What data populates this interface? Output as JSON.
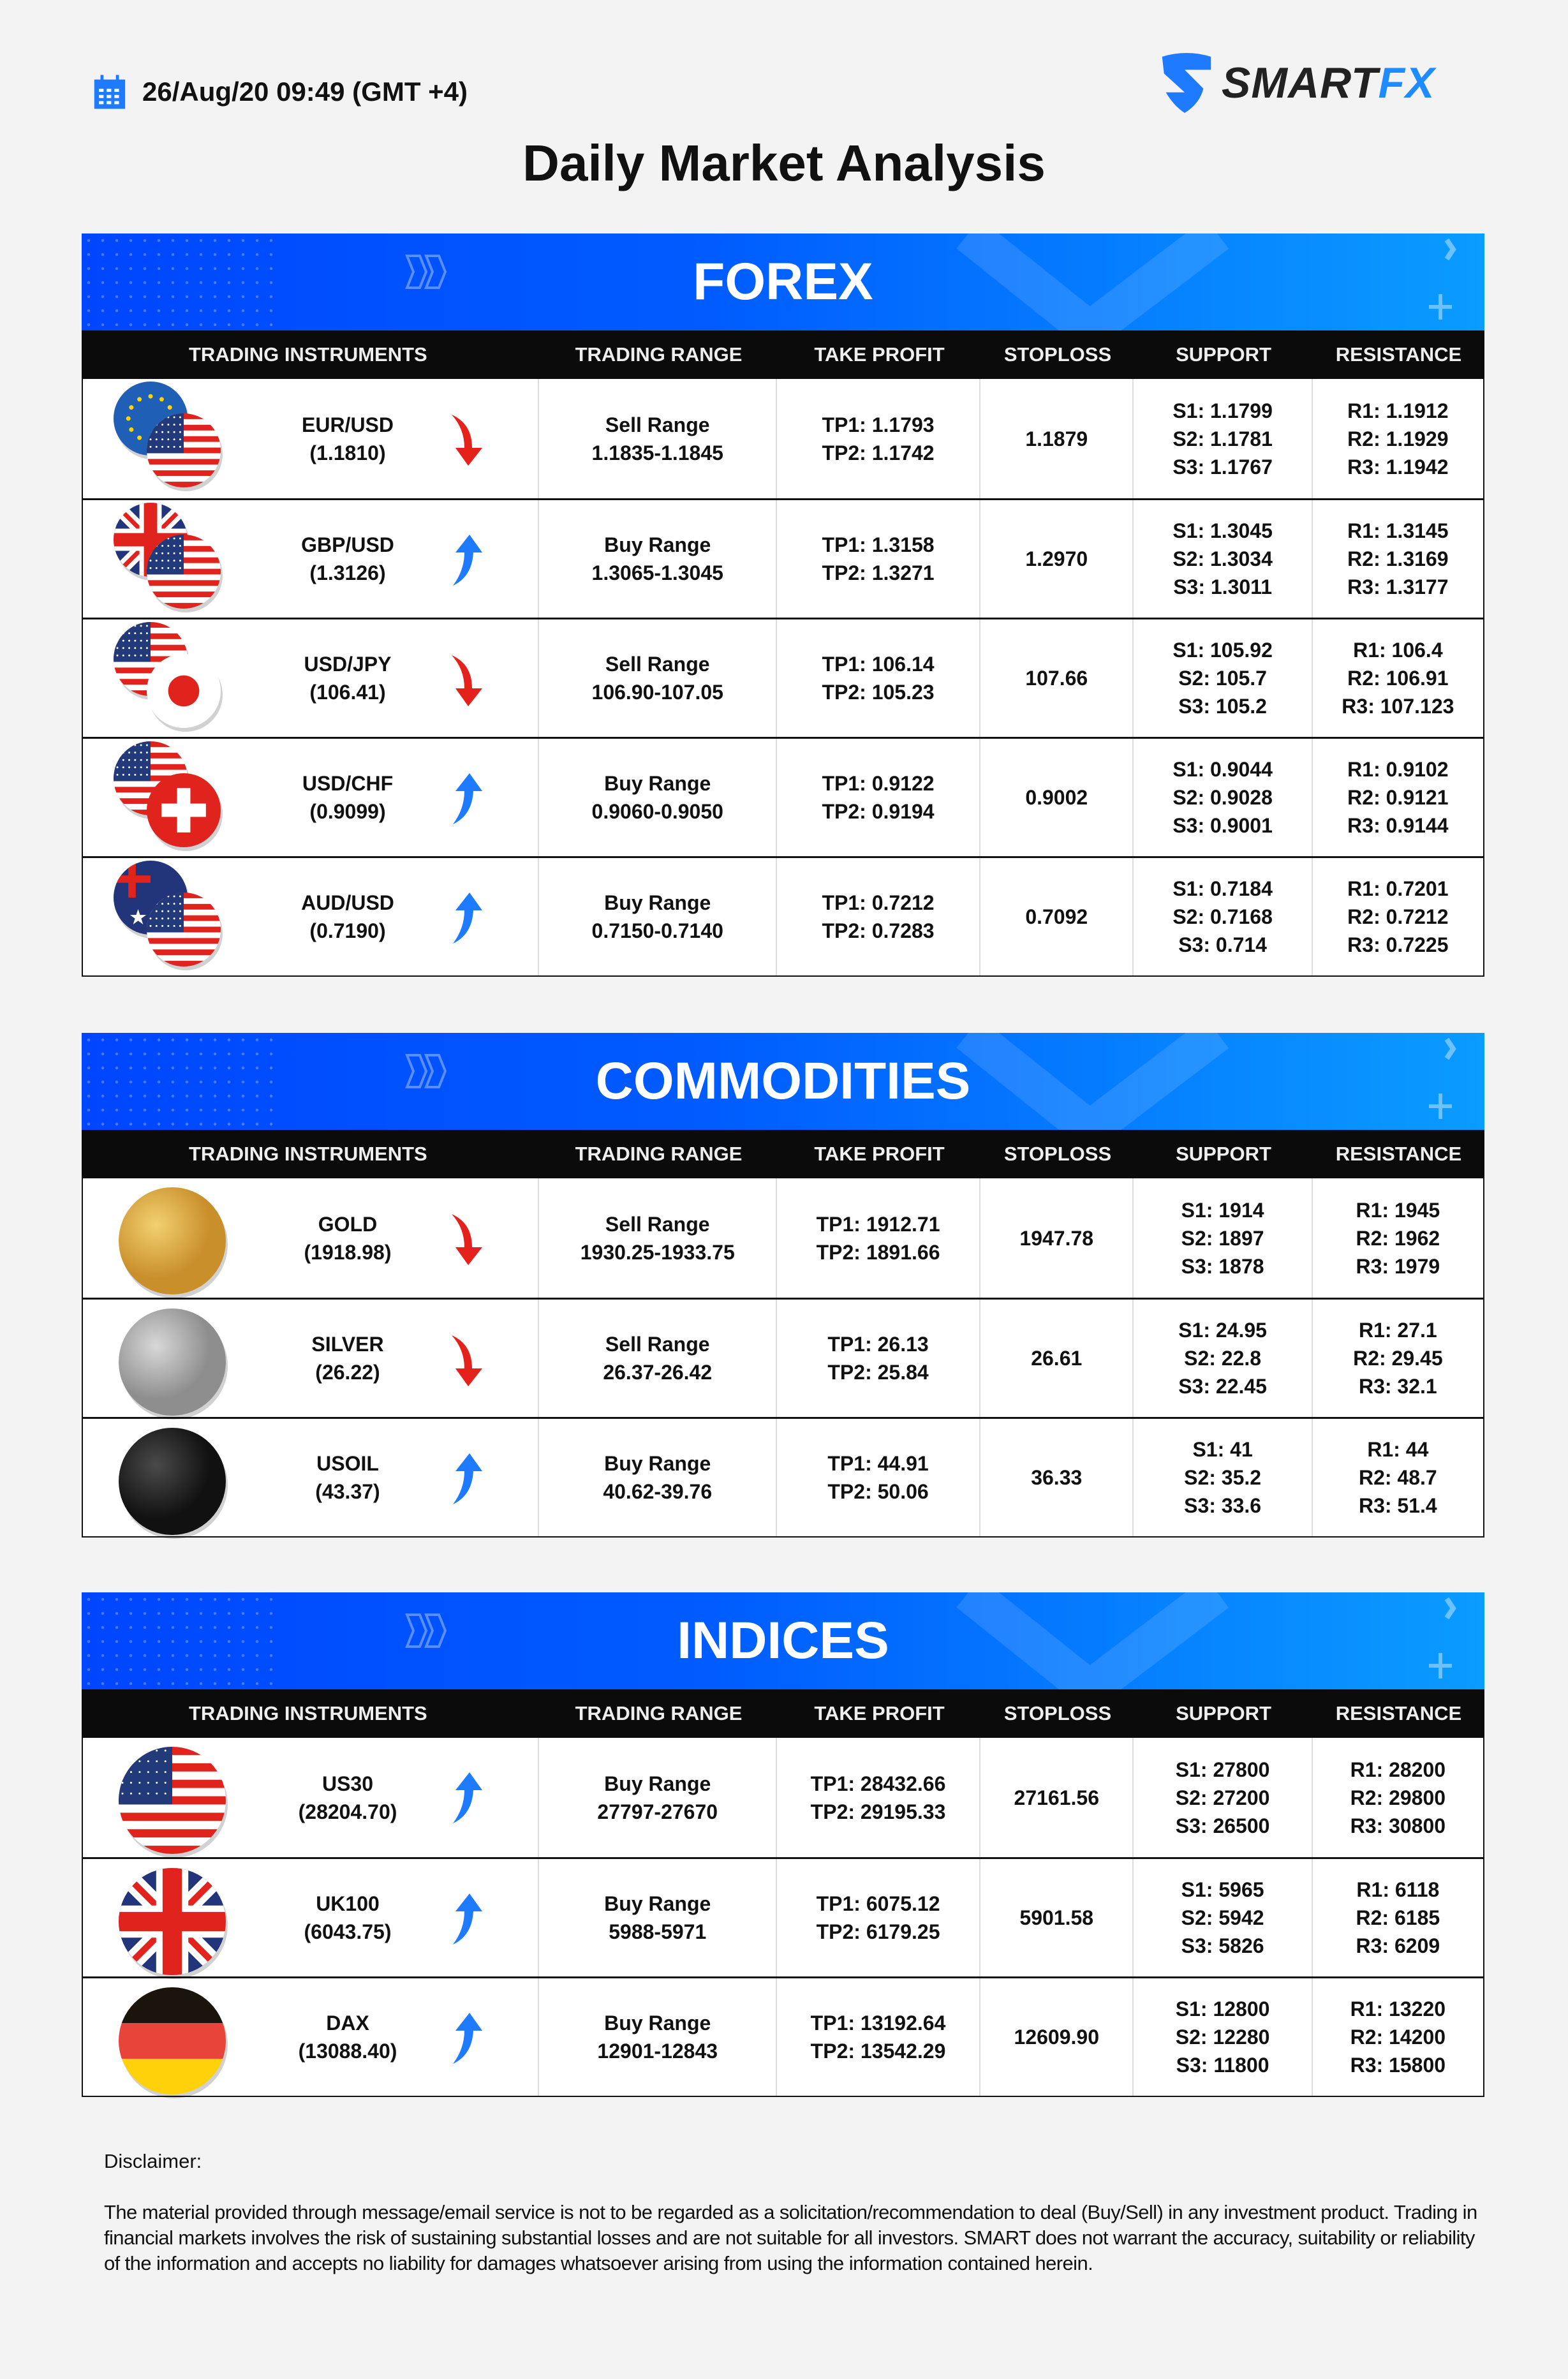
{
  "header": {
    "date": "26/Aug/20 09:49 (GMT +4)",
    "logo": {
      "part1": "SMART",
      "part2": "FX"
    },
    "title": "Daily Market Analysis"
  },
  "colors": {
    "brand_blue": "#0a6cff",
    "down_red": "#e4211b",
    "up_blue": "#1e7bff",
    "header_black": "#0b0b0b"
  },
  "columns": [
    "TRADING INSTRUMENTS",
    "TRADING RANGE",
    "TAKE PROFIT",
    "STOPLOSS",
    "SUPPORT",
    "RESISTANCE"
  ],
  "sections": [
    {
      "title": "FOREX",
      "rows": [
        {
          "icon": [
            "eu-flag",
            "us-flag"
          ],
          "name": "EUR/USD",
          "price": "(1.1810)",
          "trend": "down",
          "range_label": "Sell Range",
          "range": "1.1835-1.1845",
          "tp": [
            "TP1: 1.1793",
            "TP2: 1.1742"
          ],
          "sl": "1.1879",
          "support": [
            "S1: 1.1799",
            "S2: 1.1781",
            "S3: 1.1767"
          ],
          "resistance": [
            "R1: 1.1912",
            "R2: 1.1929",
            "R3: 1.1942"
          ]
        },
        {
          "icon": [
            "gb-flag",
            "us-flag"
          ],
          "name": "GBP/USD",
          "price": "(1.3126)",
          "trend": "up",
          "range_label": "Buy Range",
          "range": "1.3065-1.3045",
          "tp": [
            "TP1: 1.3158",
            "TP2: 1.3271"
          ],
          "sl": "1.2970",
          "support": [
            "S1: 1.3045",
            "S2: 1.3034",
            "S3: 1.3011"
          ],
          "resistance": [
            "R1: 1.3145",
            "R2: 1.3169",
            "R3: 1.3177"
          ]
        },
        {
          "icon": [
            "us-flag",
            "jp-flag"
          ],
          "name": "USD/JPY",
          "price": "(106.41)",
          "trend": "down",
          "range_label": "Sell Range",
          "range": "106.90-107.05",
          "tp": [
            "TP1: 106.14",
            "TP2: 105.23"
          ],
          "sl": "107.66",
          "support": [
            "S1: 105.92",
            "S2: 105.7",
            "S3: 105.2"
          ],
          "resistance": [
            "R1: 106.4",
            "R2: 106.91",
            "R3: 107.123"
          ]
        },
        {
          "icon": [
            "us-flag",
            "ch-flag"
          ],
          "name": "USD/CHF",
          "price": "(0.9099)",
          "trend": "up",
          "range_label": "Buy Range",
          "range": "0.9060-0.9050",
          "tp": [
            "TP1: 0.9122",
            "TP2: 0.9194"
          ],
          "sl": "0.9002",
          "support": [
            "S1: 0.9044",
            "S2: 0.9028",
            "S3: 0.9001"
          ],
          "resistance": [
            "R1: 0.9102",
            "R2: 0.9121",
            "R3: 0.9144"
          ]
        },
        {
          "icon": [
            "au-flag",
            "us-flag"
          ],
          "name": "AUD/USD",
          "price": "(0.7190)",
          "trend": "up",
          "range_label": "Buy Range",
          "range": "0.7150-0.7140",
          "tp": [
            "TP1: 0.7212",
            "TP2: 0.7283"
          ],
          "sl": "0.7092",
          "support": [
            "S1: 0.7184",
            "S2: 0.7168",
            "S3: 0.714"
          ],
          "resistance": [
            "R1: 0.7201",
            "R2: 0.7212",
            "R3: 0.7225"
          ]
        }
      ]
    },
    {
      "title": "COMMODITIES",
      "rows": [
        {
          "icon": [
            "gold-coin"
          ],
          "name": "GOLD",
          "price": "(1918.98)",
          "trend": "down",
          "range_label": "Sell Range",
          "range": "1930.25-1933.75",
          "tp": [
            "TP1: 1912.71",
            "TP2: 1891.66"
          ],
          "sl": "1947.78",
          "support": [
            "S1: 1914",
            "S2: 1897",
            "S3: 1878"
          ],
          "resistance": [
            "R1: 1945",
            "R2: 1962",
            "R3: 1979"
          ]
        },
        {
          "icon": [
            "silver-coin"
          ],
          "name": "SILVER",
          "price": "(26.22)",
          "trend": "down",
          "range_label": "Sell Range",
          "range": "26.37-26.42",
          "tp": [
            "TP1: 26.13",
            "TP2: 25.84"
          ],
          "sl": "26.61",
          "support": [
            "S1: 24.95",
            "S2: 22.8",
            "S3: 22.45"
          ],
          "resistance": [
            "R1: 27.1",
            "R2: 29.45",
            "R3: 32.1"
          ]
        },
        {
          "icon": [
            "oil-coin"
          ],
          "name": "USOIL",
          "price": "(43.37)",
          "trend": "up",
          "range_label": "Buy Range",
          "range": "40.62-39.76",
          "tp": [
            "TP1: 44.91",
            "TP2: 50.06"
          ],
          "sl": "36.33",
          "support": [
            "S1: 41",
            "S2: 35.2",
            "S3: 33.6"
          ],
          "resistance": [
            "R1: 44",
            "R2: 48.7",
            "R3: 51.4"
          ]
        }
      ]
    },
    {
      "title": "INDICES",
      "rows": [
        {
          "icon": [
            "us-flag"
          ],
          "name": "US30",
          "price": "(28204.70)",
          "trend": "up",
          "range_label": "Buy Range",
          "range": "27797-27670",
          "tp": [
            "TP1: 28432.66",
            "TP2: 29195.33"
          ],
          "sl": "27161.56",
          "support": [
            "S1: 27800",
            "S2: 27200",
            "S3: 26500"
          ],
          "resistance": [
            "R1: 28200",
            "R2: 29800",
            "R3: 30800"
          ]
        },
        {
          "icon": [
            "gb-flag"
          ],
          "name": "UK100",
          "price": "(6043.75)",
          "trend": "up",
          "range_label": "Buy Range",
          "range": "5988-5971",
          "tp": [
            "TP1: 6075.12",
            "TP2: 6179.25"
          ],
          "sl": "5901.58",
          "support": [
            "S1: 5965",
            "S2: 5942",
            "S3: 5826"
          ],
          "resistance": [
            "R1: 6118",
            "R2: 6185",
            "R3: 6209"
          ]
        },
        {
          "icon": [
            "de-flag"
          ],
          "name": "DAX",
          "price": "(13088.40)",
          "trend": "up",
          "range_label": "Buy Range",
          "range": "12901-12843",
          "tp": [
            "TP1: 13192.64",
            "TP2: 13542.29"
          ],
          "sl": "12609.90",
          "support": [
            "S1: 12800",
            "S2: 12280",
            "S3: 11800"
          ],
          "resistance": [
            "R1: 13220",
            "R2: 14200",
            "R3: 15800"
          ]
        }
      ]
    }
  ],
  "disclaimer": {
    "label": "Disclaimer:",
    "text": "The material provided through message/email service is not to be regarded as a solicitation/recommendation to deal (Buy/Sell) in any investment product. Trading in financial markets involves the risk of sustaining substantial losses and are not suitable for all investors. SMART does not warrant the accuracy, suitability or reliability of the information and accepts no liability for damages whatsoever arising from using the information contained herein."
  }
}
